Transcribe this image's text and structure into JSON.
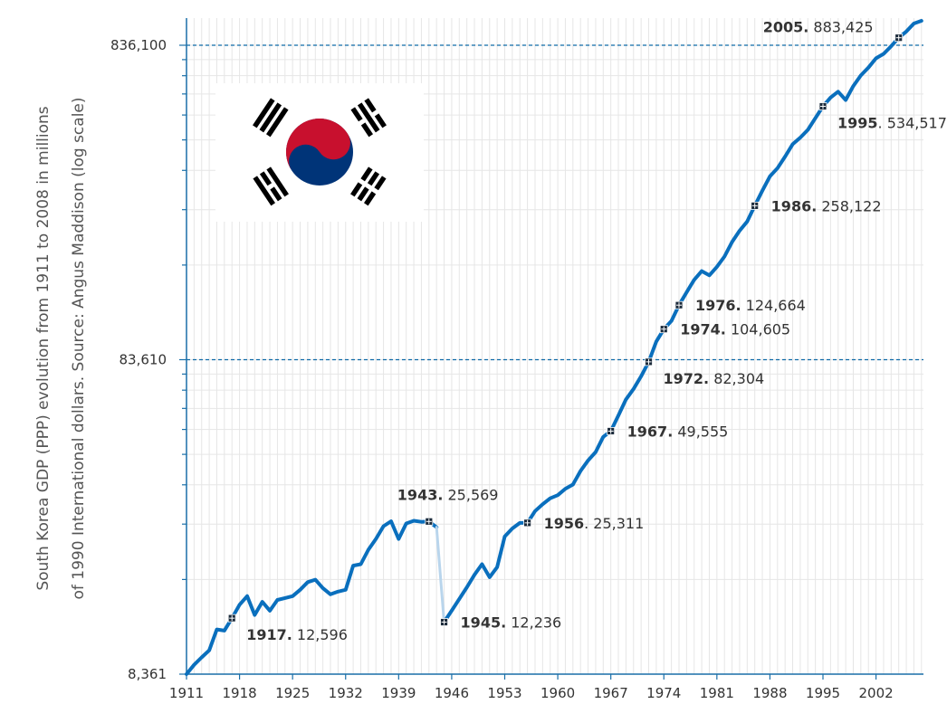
{
  "chart_data": {
    "type": "line",
    "ylabel_lines": [
      "South Korea GDP (PPP) evolution from 1911 to 2008 in millions",
      "of 1990 International dollars. Source: Angus Maddison (log scale)"
    ],
    "y_scale": "log",
    "ylim": [
      8361,
      1020000
    ],
    "xlim": [
      1911,
      2008
    ],
    "grid": true,
    "x_ticks": [
      1911,
      1918,
      1925,
      1932,
      1939,
      1946,
      1953,
      1960,
      1967,
      1974,
      1981,
      1988,
      1995,
      2002
    ],
    "y_ticks": [
      {
        "value": 8361,
        "label": "8,361"
      },
      {
        "value": 83610,
        "label": "83,610"
      },
      {
        "value": 836100,
        "label": "836,100"
      }
    ],
    "reference_lines": [
      83610,
      836100
    ],
    "colors": {
      "line": "#0a6fbd",
      "gap_line": "#b9d5ec",
      "grid": "#e6e6e6",
      "reference": "#0e6aa8",
      "axis": "#1a6fa8"
    },
    "segments": [
      {
        "style": "solid",
        "points": [
          [
            1911,
            8361
          ],
          [
            1912,
            8950
          ],
          [
            1913,
            9450
          ],
          [
            1914,
            9950
          ],
          [
            1915,
            11600
          ],
          [
            1916,
            11500
          ],
          [
            1917,
            12596
          ],
          [
            1918,
            13900
          ],
          [
            1919,
            14800
          ],
          [
            1920,
            12900
          ],
          [
            1921,
            14200
          ],
          [
            1922,
            13300
          ],
          [
            1923,
            14400
          ],
          [
            1924,
            14600
          ],
          [
            1925,
            14800
          ],
          [
            1926,
            15500
          ],
          [
            1927,
            16400
          ],
          [
            1928,
            16700
          ],
          [
            1929,
            15700
          ],
          [
            1930,
            15000
          ],
          [
            1931,
            15300
          ],
          [
            1932,
            15500
          ],
          [
            1933,
            18500
          ],
          [
            1934,
            18700
          ],
          [
            1935,
            20800
          ],
          [
            1936,
            22500
          ],
          [
            1937,
            24700
          ],
          [
            1938,
            25600
          ],
          [
            1939,
            22500
          ],
          [
            1940,
            25200
          ],
          [
            1941,
            25700
          ],
          [
            1942,
            25500
          ],
          [
            1943,
            25569
          ],
          [
            1944,
            24500
          ]
        ]
      },
      {
        "style": "gap",
        "points": [
          [
            1944,
            24500
          ],
          [
            1945,
            12236
          ]
        ]
      },
      {
        "style": "solid",
        "points": [
          [
            1945,
            12236
          ],
          [
            1946,
            13300
          ],
          [
            1947,
            14500
          ],
          [
            1948,
            15800
          ],
          [
            1949,
            17300
          ],
          [
            1950,
            18700
          ],
          [
            1951,
            17000
          ],
          [
            1952,
            18300
          ],
          [
            1953,
            22900
          ],
          [
            1954,
            24300
          ],
          [
            1955,
            25300
          ],
          [
            1956,
            25311
          ],
          [
            1957,
            27600
          ],
          [
            1958,
            29000
          ],
          [
            1959,
            30300
          ],
          [
            1960,
            31000
          ],
          [
            1961,
            32500
          ],
          [
            1962,
            33500
          ],
          [
            1963,
            37000
          ],
          [
            1964,
            40000
          ],
          [
            1965,
            42500
          ],
          [
            1966,
            47500
          ],
          [
            1967,
            49555
          ],
          [
            1968,
            55500
          ],
          [
            1969,
            62500
          ],
          [
            1970,
            67500
          ],
          [
            1971,
            74000
          ],
          [
            1972,
            82304
          ],
          [
            1973,
            95500
          ],
          [
            1974,
            104605
          ],
          [
            1975,
            111000
          ],
          [
            1976,
            124664
          ],
          [
            1977,
            137000
          ],
          [
            1978,
            150000
          ],
          [
            1979,
            160000
          ],
          [
            1980,
            155000
          ],
          [
            1981,
            165000
          ],
          [
            1982,
            178000
          ],
          [
            1983,
            198000
          ],
          [
            1984,
            215000
          ],
          [
            1985,
            230000
          ],
          [
            1986,
            258122
          ],
          [
            1987,
            288000
          ],
          [
            1988,
            320000
          ],
          [
            1989,
            340000
          ],
          [
            1990,
            370000
          ],
          [
            1991,
            405000
          ],
          [
            1992,
            425000
          ],
          [
            1993,
            450000
          ],
          [
            1994,
            490000
          ],
          [
            1995,
            534517
          ],
          [
            1996,
            570000
          ],
          [
            1997,
            595000
          ],
          [
            1998,
            560000
          ],
          [
            1999,
            620000
          ],
          [
            2000,
            670000
          ],
          [
            2001,
            710000
          ],
          [
            2002,
            760000
          ],
          [
            2003,
            785000
          ],
          [
            2004,
            830000
          ],
          [
            2005,
            883425
          ],
          [
            2006,
            925000
          ],
          [
            2007,
            980000
          ],
          [
            2008,
            1000000
          ]
        ]
      }
    ],
    "annotations": [
      {
        "year": 1917,
        "value": 12596,
        "year_label": "1917.",
        "value_label": "12,596",
        "pos": "below-right"
      },
      {
        "year": 1943,
        "value": 25569,
        "year_label": "1943.",
        "value_label": "25,569",
        "pos": "above"
      },
      {
        "year": 1945,
        "value": 12236,
        "year_label": "1945.",
        "value_label": "12,236",
        "pos": "right"
      },
      {
        "year": 1956,
        "value": 25311,
        "year_label": "1956",
        "value_label": ". 25,311",
        "pos": "right"
      },
      {
        "year": 1967,
        "value": 49555,
        "year_label": "1967.",
        "value_label": "49,555",
        "pos": "right"
      },
      {
        "year": 1972,
        "value": 82304,
        "year_label": "1972.",
        "value_label": "82,304",
        "pos": "below-right"
      },
      {
        "year": 1974,
        "value": 104605,
        "year_label": "1974.",
        "value_label": "104,605",
        "pos": "right"
      },
      {
        "year": 1976,
        "value": 124664,
        "year_label": "1976.",
        "value_label": "124,664",
        "pos": "right"
      },
      {
        "year": 1986,
        "value": 258122,
        "year_label": "1986.",
        "value_label": "258,122",
        "pos": "right"
      },
      {
        "year": 1995,
        "value": 534517,
        "year_label": "1995",
        "value_label": ". 534,517",
        "pos": "below-right"
      },
      {
        "year": 2005,
        "value": 883425,
        "year_label": "2005.",
        "value_label": "883,425",
        "pos": "above-left"
      }
    ]
  },
  "flag": {
    "name": "south-korea-flag",
    "colors": {
      "red": "#c8102e",
      "blue": "#003478",
      "black": "#000000",
      "white": "#ffffff"
    }
  }
}
